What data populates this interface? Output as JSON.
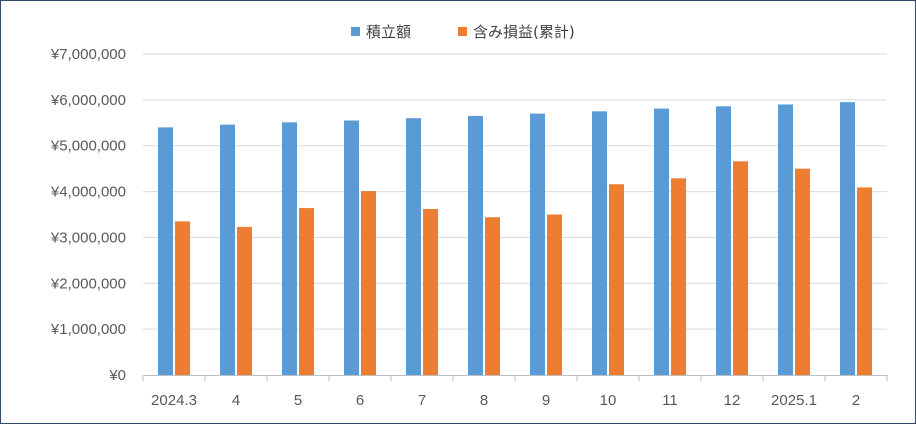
{
  "chart_data": {
    "type": "bar",
    "title": "",
    "xlabel": "",
    "ylabel": "",
    "categories": [
      "2024.3",
      "4",
      "5",
      "6",
      "7",
      "8",
      "9",
      "10",
      "11",
      "12",
      "2025.1",
      "2"
    ],
    "series": [
      {
        "name": "積立額",
        "color": "#5b9bd5",
        "values": [
          5400000,
          5460000,
          5510000,
          5550000,
          5600000,
          5650000,
          5700000,
          5750000,
          5810000,
          5860000,
          5900000,
          5950000
        ]
      },
      {
        "name": "含み損益(累計)",
        "color": "#ed7d31",
        "values": [
          3350000,
          3230000,
          3640000,
          4010000,
          3620000,
          3440000,
          3500000,
          4160000,
          4290000,
          4660000,
          4500000,
          4090000
        ]
      }
    ],
    "ylim": [
      0,
      7000000
    ],
    "ytick_labels": [
      "¥0",
      "¥1,000,000",
      "¥2,000,000",
      "¥3,000,000",
      "¥4,000,000",
      "¥5,000,000",
      "¥6,000,000",
      "¥7,000,000"
    ],
    "legend_position": "top",
    "grid": true,
    "gridline_color": "#d9d9d9",
    "axis_color": "#bfbfbf"
  }
}
